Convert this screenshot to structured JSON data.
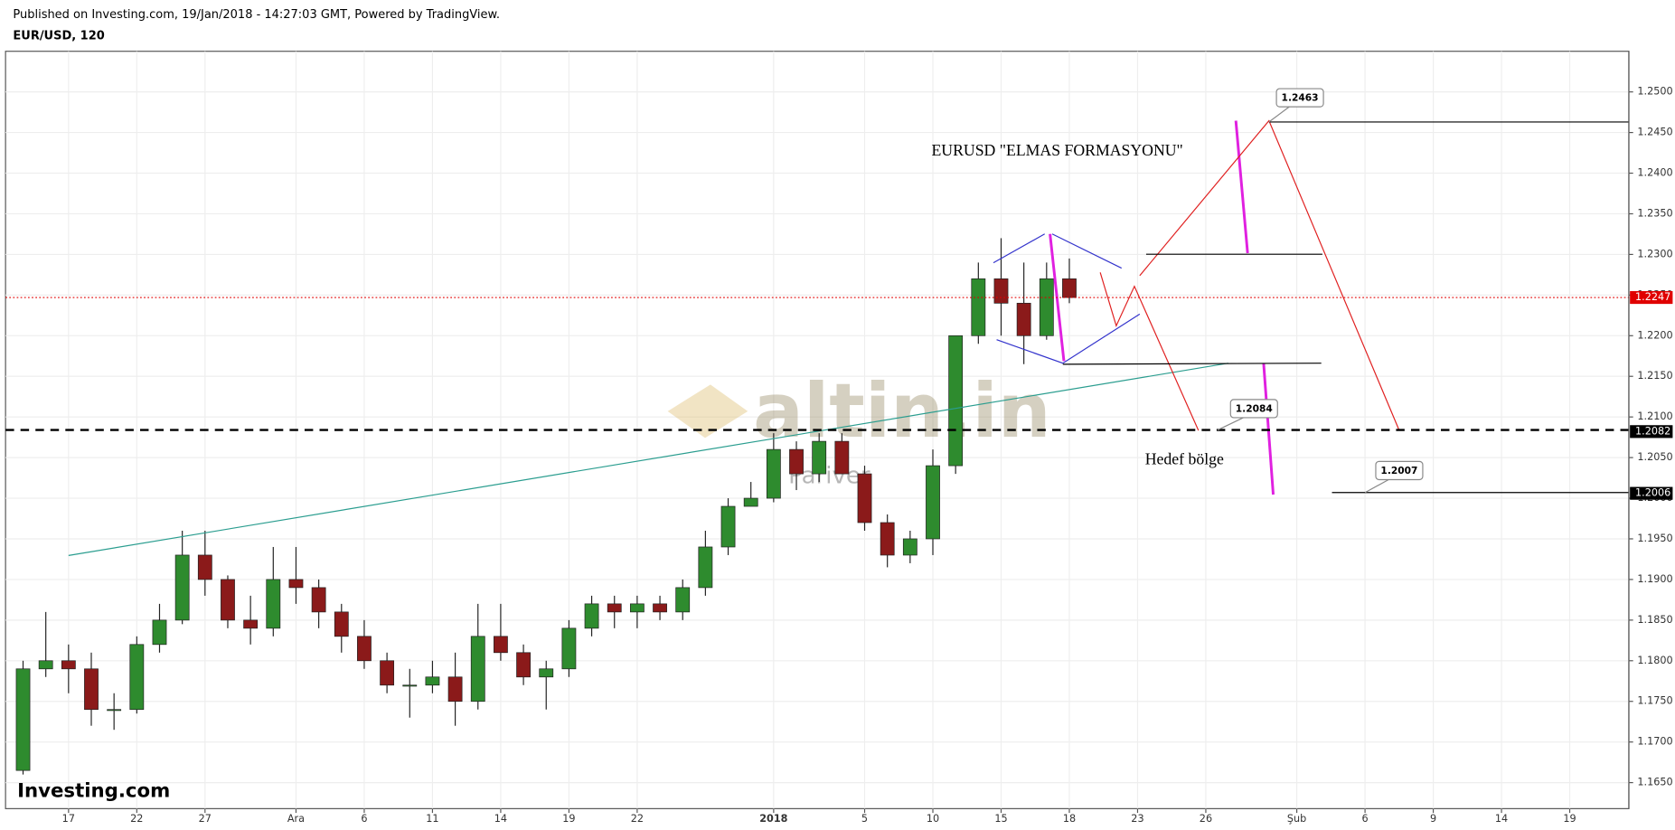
{
  "chart_data": {
    "type": "candlestick",
    "header": "Published on Investing.com, 19/Jan/2018 - 14:27:03 GMT, Powered by TradingView.",
    "title": "EUR/USD, 120",
    "annotations": [
      "EURUSD \"ELMAS FORMASYONU\"",
      "Hedef bölge"
    ],
    "watermark": [
      "altin.in",
      "Pariver"
    ],
    "logo": "Investing.com",
    "up_color": "#2e8b2e",
    "down_color": "#8b1a1a",
    "grid": true,
    "open": [
      1.1665,
      1.179,
      1.18,
      1.179,
      1.174,
      1.174,
      1.182,
      1.185,
      1.193,
      1.19,
      1.185,
      1.184,
      1.19,
      1.189,
      1.186,
      1.183,
      1.18,
      1.177,
      1.177,
      1.178,
      1.175,
      1.183,
      1.181,
      1.178,
      1.179,
      1.184,
      1.187,
      1.186,
      1.187,
      1.186,
      1.189,
      1.194,
      1.199,
      1.2,
      1.206,
      1.203,
      1.207,
      1.203,
      1.197,
      1.193,
      1.195,
      1.204,
      1.22,
      1.227,
      1.224,
      1.22,
      1.227
    ],
    "high": [
      1.18,
      1.186,
      1.182,
      1.181,
      1.176,
      1.183,
      1.187,
      1.196,
      1.196,
      1.1905,
      1.188,
      1.194,
      1.194,
      1.19,
      1.187,
      1.185,
      1.181,
      1.179,
      1.18,
      1.181,
      1.187,
      1.187,
      1.182,
      1.18,
      1.185,
      1.188,
      1.188,
      1.188,
      1.188,
      1.19,
      1.196,
      1.2,
      1.202,
      1.208,
      1.207,
      1.208,
      1.208,
      1.204,
      1.198,
      1.196,
      1.206,
      1.22,
      1.229,
      1.232,
      1.229,
      1.229,
      1.2295
    ],
    "low": [
      1.166,
      1.178,
      1.176,
      1.172,
      1.1715,
      1.1735,
      1.181,
      1.1845,
      1.188,
      1.184,
      1.182,
      1.183,
      1.187,
      1.184,
      1.181,
      1.179,
      1.176,
      1.173,
      1.176,
      1.172,
      1.174,
      1.18,
      1.177,
      1.174,
      1.178,
      1.183,
      1.184,
      1.184,
      1.185,
      1.185,
      1.188,
      1.193,
      1.199,
      1.1995,
      1.201,
      1.202,
      1.203,
      1.196,
      1.1915,
      1.192,
      1.193,
      1.203,
      1.219,
      1.22,
      1.2165,
      1.2195,
      1.224
    ],
    "close": [
      1.179,
      1.18,
      1.179,
      1.174,
      1.174,
      1.182,
      1.185,
      1.193,
      1.19,
      1.185,
      1.184,
      1.19,
      1.189,
      1.186,
      1.183,
      1.18,
      1.177,
      1.177,
      1.178,
      1.175,
      1.183,
      1.181,
      1.178,
      1.179,
      1.184,
      1.187,
      1.186,
      1.187,
      1.186,
      1.189,
      1.194,
      1.199,
      1.2,
      1.206,
      1.203,
      1.207,
      1.203,
      1.197,
      1.193,
      1.195,
      1.204,
      1.22,
      1.227,
      1.224,
      1.22,
      1.227,
      1.2247
    ],
    "xlim": [
      -0.77,
      70.6
    ],
    "xticks": [
      {
        "value": 2,
        "label": "17"
      },
      {
        "value": 5,
        "label": "22"
      },
      {
        "value": 8,
        "label": "27"
      },
      {
        "value": 12,
        "label": "Ara"
      },
      {
        "value": 15,
        "label": "6"
      },
      {
        "value": 18,
        "label": "11"
      },
      {
        "value": 21,
        "label": "14"
      },
      {
        "value": 24,
        "label": "19"
      },
      {
        "value": 27,
        "label": "22"
      },
      {
        "value": 33,
        "label": "2018"
      },
      {
        "value": 37,
        "label": "5"
      },
      {
        "value": 40,
        "label": "10"
      },
      {
        "value": 43,
        "label": "15"
      },
      {
        "value": 46,
        "label": "18"
      },
      {
        "value": 49,
        "label": "23"
      },
      {
        "value": 52,
        "label": "26"
      },
      {
        "value": 56,
        "label": "Şub"
      },
      {
        "value": 59,
        "label": "6"
      },
      {
        "value": 62,
        "label": "9"
      },
      {
        "value": 65,
        "label": "14"
      },
      {
        "value": 68,
        "label": "19"
      }
    ],
    "ylim": [
      1.1618,
      1.255
    ],
    "yticks": [
      {
        "value": 1.165,
        "label": "1.1650"
      },
      {
        "value": 1.17,
        "label": "1.1700"
      },
      {
        "value": 1.175,
        "label": "1.1750"
      },
      {
        "value": 1.18,
        "label": "1.1800"
      },
      {
        "value": 1.185,
        "label": "1.1850"
      },
      {
        "value": 1.19,
        "label": "1.1900"
      },
      {
        "value": 1.195,
        "label": "1.1950"
      },
      {
        "value": 1.2,
        "label": "1.2000"
      },
      {
        "value": 1.205,
        "label": "1.2050"
      },
      {
        "value": 1.21,
        "label": "1.2100"
      },
      {
        "value": 1.215,
        "label": "1.2150"
      },
      {
        "value": 1.22,
        "label": "1.2200"
      },
      {
        "value": 1.225,
        "label": "1.2250"
      },
      {
        "value": 1.23,
        "label": "1.2300"
      },
      {
        "value": 1.235,
        "label": "1.2350"
      },
      {
        "value": 1.24,
        "label": "1.2400"
      },
      {
        "value": 1.245,
        "label": "1.2450"
      },
      {
        "value": 1.25,
        "label": "1.2500"
      }
    ],
    "price_labels": [
      {
        "value": 1.2247,
        "color": "#e00000"
      },
      {
        "value": 1.2082,
        "color": "#000000"
      },
      {
        "value": 1.2006,
        "color": "#000000"
      }
    ],
    "callouts": [
      1.2463,
      1.2084,
      1.2007
    ]
  }
}
